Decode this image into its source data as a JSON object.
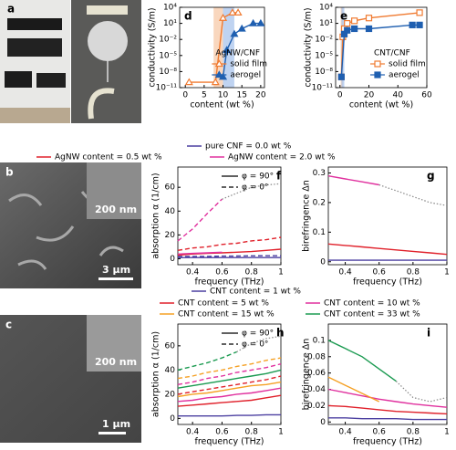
{
  "panels": [
    {
      "label": "a"
    },
    {
      "label": "b",
      "scale_inset": "200 nm",
      "scale_bar": "3 µm"
    },
    {
      "label": "c",
      "scale_inset": "200 nm",
      "scale_bar": "1 µm"
    }
  ],
  "legend_rows": [
    {
      "items": [
        {
          "label": "pure CNF = 0.0 wt %",
          "color": "#4b3fa0"
        },
        {
          "label": "AgNW content = 0.5 wt %",
          "color": "#e0202a"
        },
        {
          "label": "AgNW content = 2.0 wt %",
          "color": "#e0309e"
        }
      ]
    },
    {
      "items": [
        {
          "label": "CNT content = 1 wt %",
          "color": "#4b3fa0"
        },
        {
          "label": "CNT content = 5 wt %",
          "color": "#e0202a"
        },
        {
          "label": "CNT content = 10 wt %",
          "color": "#e0309e"
        },
        {
          "label": "CNT content = 15 wt %",
          "color": "#f5a023"
        },
        {
          "label": "CNT content = 33 wt %",
          "color": "#1a9a50"
        }
      ]
    }
  ],
  "chart_data": [
    {
      "type": "line",
      "label": "d",
      "xlabel": "content (wt %)",
      "ylabel": "conductivity (S/m)",
      "ylog": true,
      "xlim": [
        -1.5,
        21
      ],
      "xticks": [
        0,
        5,
        10,
        15,
        20
      ],
      "ylim": [
        1e-11,
        10000
      ],
      "yticks": [
        {
          "value": 10000,
          "label": "10⁴"
        },
        {
          "value": 10,
          "label": "10¹"
        },
        {
          "value": 0.01,
          "label": "10⁻²"
        },
        {
          "value": 1e-05,
          "label": "10⁻⁵"
        },
        {
          "value": 1e-08,
          "label": "10⁻⁸"
        },
        {
          "value": 1e-11,
          "label": "10⁻¹¹"
        }
      ],
      "shaded": [
        {
          "range": [
            7.5,
            10
          ],
          "color": "#f7c9a8"
        },
        {
          "range": [
            10,
            13
          ],
          "color": "#a9c4ec"
        }
      ],
      "legend_title": "AgNW/CNF",
      "series": [
        {
          "name": "solid film",
          "color": "#f07a30",
          "marker": "triangle",
          "open": true,
          "x": [
            1,
            8,
            10,
            12.5,
            14
          ],
          "values": [
            1e-10,
            1e-10,
            100,
            1000,
            1000
          ]
        },
        {
          "name": "aerogel",
          "color": "#1f5fb0",
          "marker": "triangle",
          "open": false,
          "x": [
            10,
            11,
            13,
            15,
            18,
            20
          ],
          "values": [
            1e-09,
            0.0001,
            0.1,
            1,
            10,
            10
          ]
        }
      ]
    },
    {
      "type": "line",
      "label": "e",
      "xlabel": "content (wt %)",
      "ylabel": "conductivity (S/m)",
      "ylog": true,
      "xlim": [
        -3,
        60
      ],
      "xticks": [
        0,
        20,
        40,
        60
      ],
      "ylim": [
        1e-11,
        10000
      ],
      "yticks": [
        {
          "value": 10000,
          "label": "10⁴"
        },
        {
          "value": 10,
          "label": "10¹"
        },
        {
          "value": 0.01,
          "label": "10⁻²"
        },
        {
          "value": 1e-05,
          "label": "10⁻⁵"
        },
        {
          "value": 1e-08,
          "label": "10⁻⁸"
        },
        {
          "value": 1e-11,
          "label": "10⁻¹¹"
        }
      ],
      "shaded": [
        {
          "range": [
            0.5,
            2
          ],
          "color": "#f7c9a8"
        },
        {
          "range": [
            1,
            3
          ],
          "color": "#a9c4ec"
        }
      ],
      "legend_title": "CNT/CNF",
      "series": [
        {
          "name": "solid film",
          "color": "#f07a30",
          "marker": "square",
          "open": true,
          "x": [
            1,
            2,
            3,
            5,
            10,
            20,
            55
          ],
          "values": [
            1e-09,
            0.03,
            1,
            10,
            30,
            100,
            1000
          ]
        },
        {
          "name": "aerogel",
          "color": "#1f5fb0",
          "marker": "square",
          "open": false,
          "x": [
            1,
            3,
            5,
            10,
            20,
            50,
            55
          ],
          "values": [
            1e-09,
            0.1,
            0.5,
            1,
            1,
            5,
            5
          ]
        }
      ]
    },
    {
      "type": "line",
      "label": "f",
      "xlabel": "frequency (THz)",
      "ylabel": "absorption α (1/cm)",
      "xlim": [
        0.3,
        1
      ],
      "xticks": [
        0.4,
        0.6,
        0.8,
        1
      ],
      "ylim": [
        -5,
        77
      ],
      "yticks": [
        0,
        20,
        40,
        60
      ],
      "style_legend": [
        {
          "label": "φ = 90°",
          "style": "solid"
        },
        {
          "label": "φ = 0°",
          "style": "dashed"
        }
      ],
      "x": [
        0.3,
        0.4,
        0.5,
        0.6,
        0.7,
        0.8,
        0.9,
        1
      ],
      "series": [
        {
          "color": "#4b3fa0",
          "style": "solid",
          "values": [
            1,
            1,
            1,
            1,
            1,
            1,
            1,
            1
          ]
        },
        {
          "color": "#4b3fa0",
          "style": "dashed",
          "values": [
            2,
            2,
            2,
            2.2,
            2.3,
            2.4,
            2.5,
            2.5
          ]
        },
        {
          "color": "#e0202a",
          "style": "solid",
          "values": [
            3,
            4,
            4.5,
            5,
            5.5,
            6,
            7,
            8
          ]
        },
        {
          "color": "#e0202a",
          "style": "dashed",
          "values": [
            7,
            9,
            10,
            12,
            13,
            15,
            16,
            18
          ]
        },
        {
          "color": "#e0309e",
          "style": "solid",
          "values": [
            4,
            4.5,
            5,
            5.5,
            null,
            null,
            null,
            null
          ]
        },
        {
          "color": "#e0309e",
          "style": "dashed",
          "values": [
            15,
            25,
            38,
            50,
            null,
            null,
            null,
            null
          ]
        },
        {
          "color": "#888888",
          "style": "dotted",
          "values": [
            null,
            null,
            null,
            50,
            55,
            60,
            62,
            63
          ]
        }
      ]
    },
    {
      "type": "line",
      "label": "g",
      "xlabel": "frequency (THz)",
      "ylabel": "birefringence Δn",
      "xlim": [
        0.3,
        1
      ],
      "xticks": [
        0.4,
        0.6,
        0.8,
        1
      ],
      "ylim": [
        -0.01,
        0.32
      ],
      "yticks": [
        0,
        0.1,
        0.2,
        0.3
      ],
      "x": [
        0.3,
        0.4,
        0.5,
        0.6,
        0.7,
        0.8,
        0.9,
        1
      ],
      "series": [
        {
          "color": "#4b3fa0",
          "style": "solid",
          "values": [
            0.005,
            0.005,
            0.005,
            0.005,
            0.005,
            0.005,
            0.005,
            0.005
          ]
        },
        {
          "color": "#e0202a",
          "style": "solid",
          "values": [
            0.06,
            0.055,
            0.05,
            0.045,
            0.04,
            0.035,
            0.03,
            0.025
          ]
        },
        {
          "color": "#e0309e",
          "style": "solid",
          "values": [
            0.29,
            0.28,
            0.27,
            0.26,
            null,
            null,
            null,
            null
          ]
        },
        {
          "color": "#888888",
          "style": "dotted",
          "values": [
            null,
            null,
            null,
            0.26,
            0.24,
            0.22,
            0.2,
            0.19
          ]
        }
      ]
    },
    {
      "type": "line",
      "label": "h",
      "xlabel": "frequency (THz)",
      "ylabel": "absorption α (1/cm)",
      "xlim": [
        0.3,
        1
      ],
      "xticks": [
        0.4,
        0.6,
        0.8,
        1
      ],
      "ylim": [
        -5,
        78
      ],
      "yticks": [
        0,
        20,
        40,
        60
      ],
      "style_legend": [
        {
          "label": "φ = 90°",
          "style": "solid"
        },
        {
          "label": "φ = 0°",
          "style": "dashed"
        }
      ],
      "x": [
        0.3,
        0.4,
        0.5,
        0.6,
        0.7,
        0.8,
        0.9,
        1
      ],
      "series": [
        {
          "color": "#4b3fa0",
          "style": "solid",
          "values": [
            2,
            2,
            2,
            2,
            2.5,
            2.5,
            3,
            3
          ]
        },
        {
          "color": "#e0202a",
          "style": "solid",
          "values": [
            10,
            11,
            12,
            13,
            14,
            15,
            17,
            19
          ]
        },
        {
          "color": "#e0202a",
          "style": "dashed",
          "values": [
            20,
            22,
            24,
            26,
            28,
            30,
            32,
            35
          ]
        },
        {
          "color": "#e0309e",
          "style": "solid",
          "values": [
            14,
            15,
            17,
            18,
            20,
            21,
            23,
            25
          ]
        },
        {
          "color": "#e0309e",
          "style": "dashed",
          "values": [
            28,
            30,
            33,
            35,
            38,
            40,
            42,
            45
          ]
        },
        {
          "color": "#f5a023",
          "style": "solid",
          "values": [
            18,
            20,
            21,
            23,
            25,
            27,
            28,
            30
          ]
        },
        {
          "color": "#f5a023",
          "style": "dashed",
          "values": [
            33,
            35,
            38,
            40,
            43,
            45,
            48,
            50
          ]
        },
        {
          "color": "#1a9a50",
          "style": "solid",
          "values": [
            25,
            27,
            29,
            31,
            33,
            35,
            37,
            40
          ]
        },
        {
          "color": "#1a9a50",
          "style": "dashed",
          "values": [
            40,
            43,
            46,
            50,
            55,
            null,
            null,
            null
          ]
        },
        {
          "color": "#888888",
          "style": "dotted",
          "values": [
            null,
            null,
            null,
            null,
            55,
            62,
            66,
            68
          ]
        }
      ]
    },
    {
      "type": "line",
      "label": "i",
      "xlabel": "frequency (THz)",
      "ylabel": "birefringence Δn",
      "xlim": [
        0.3,
        1
      ],
      "xticks": [
        0.4,
        0.6,
        0.8,
        1
      ],
      "ylim": [
        -0.003,
        0.12
      ],
      "yticks": [
        0,
        0.02,
        0.04,
        0.06,
        0.08,
        0.1
      ],
      "x": [
        0.3,
        0.4,
        0.5,
        0.6,
        0.7,
        0.8,
        0.9,
        1
      ],
      "series": [
        {
          "color": "#4b3fa0",
          "style": "solid",
          "values": [
            0.005,
            0.005,
            0.004,
            0.004,
            0.004,
            0.003,
            0.003,
            0.003
          ]
        },
        {
          "color": "#e0202a",
          "style": "solid",
          "values": [
            0.02,
            0.019,
            0.017,
            0.015,
            0.013,
            0.012,
            0.011,
            0.01
          ]
        },
        {
          "color": "#e0309e",
          "style": "solid",
          "values": [
            0.04,
            0.036,
            0.032,
            0.028,
            0.025,
            0.022,
            0.02,
            0.018
          ]
        },
        {
          "color": "#f5a023",
          "style": "solid",
          "values": [
            0.055,
            0.045,
            0.035,
            0.025,
            null,
            null,
            null,
            null
          ]
        },
        {
          "color": "#1a9a50",
          "style": "solid",
          "values": [
            0.1,
            0.09,
            0.08,
            0.065,
            0.05,
            null,
            null,
            null
          ]
        },
        {
          "color": "#888888",
          "style": "dotted",
          "values": [
            null,
            null,
            null,
            null,
            0.05,
            0.03,
            0.025,
            0.03
          ]
        }
      ]
    }
  ]
}
